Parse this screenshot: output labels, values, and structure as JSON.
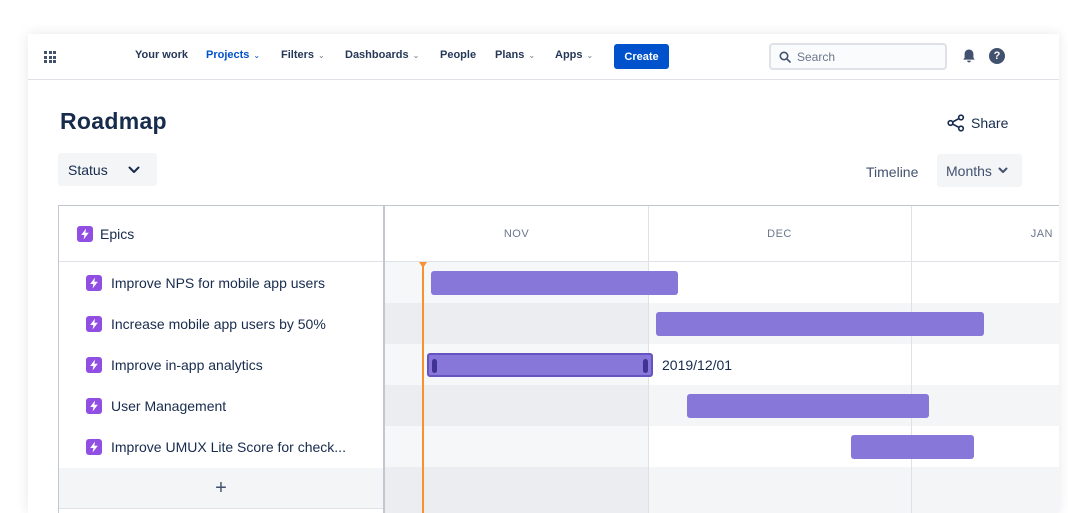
{
  "nav": {
    "items": [
      {
        "label": "Your work",
        "dropdown": false,
        "active": false
      },
      {
        "label": "Projects",
        "dropdown": true,
        "active": true
      },
      {
        "label": "Filters",
        "dropdown": true,
        "active": false
      },
      {
        "label": "Dashboards",
        "dropdown": true,
        "active": false
      },
      {
        "label": "People",
        "dropdown": false,
        "active": false
      },
      {
        "label": "Plans",
        "dropdown": true,
        "active": false
      },
      {
        "label": "Apps",
        "dropdown": true,
        "active": false
      }
    ],
    "create_label": "Create",
    "search_placeholder": "Search",
    "help_label": "?"
  },
  "page": {
    "title": "Roadmap",
    "share_label": "Share",
    "status_label": "Status",
    "timeline_label": "Timeline",
    "months_label": "Months"
  },
  "roadmap": {
    "header_label": "Epics",
    "months": [
      "NOV",
      "DEC",
      "JAN"
    ],
    "epics": [
      {
        "label": "Improve NPS for mobile app users",
        "date": ""
      },
      {
        "label": "Increase mobile app users by 50%",
        "date": ""
      },
      {
        "label": "Improve in-app analytics",
        "date": "2019/12/01"
      },
      {
        "label": "User Management",
        "date": ""
      },
      {
        "label": "Improve UMUX Lite Score for check...",
        "date": ""
      }
    ],
    "add_label": "+"
  },
  "colors": {
    "accent": "#0052cc",
    "epic_icon": "#904ee2",
    "bar": "#8777d9",
    "bar_handle": "#403294",
    "today_marker": "#f79232"
  },
  "icons": {
    "app_switcher": "grid-icon",
    "search": "search-icon",
    "notifications": "bell-icon",
    "help": "help-icon",
    "share": "share-icon",
    "dropdown": "chevron-down-icon",
    "epic": "lightning-icon"
  }
}
